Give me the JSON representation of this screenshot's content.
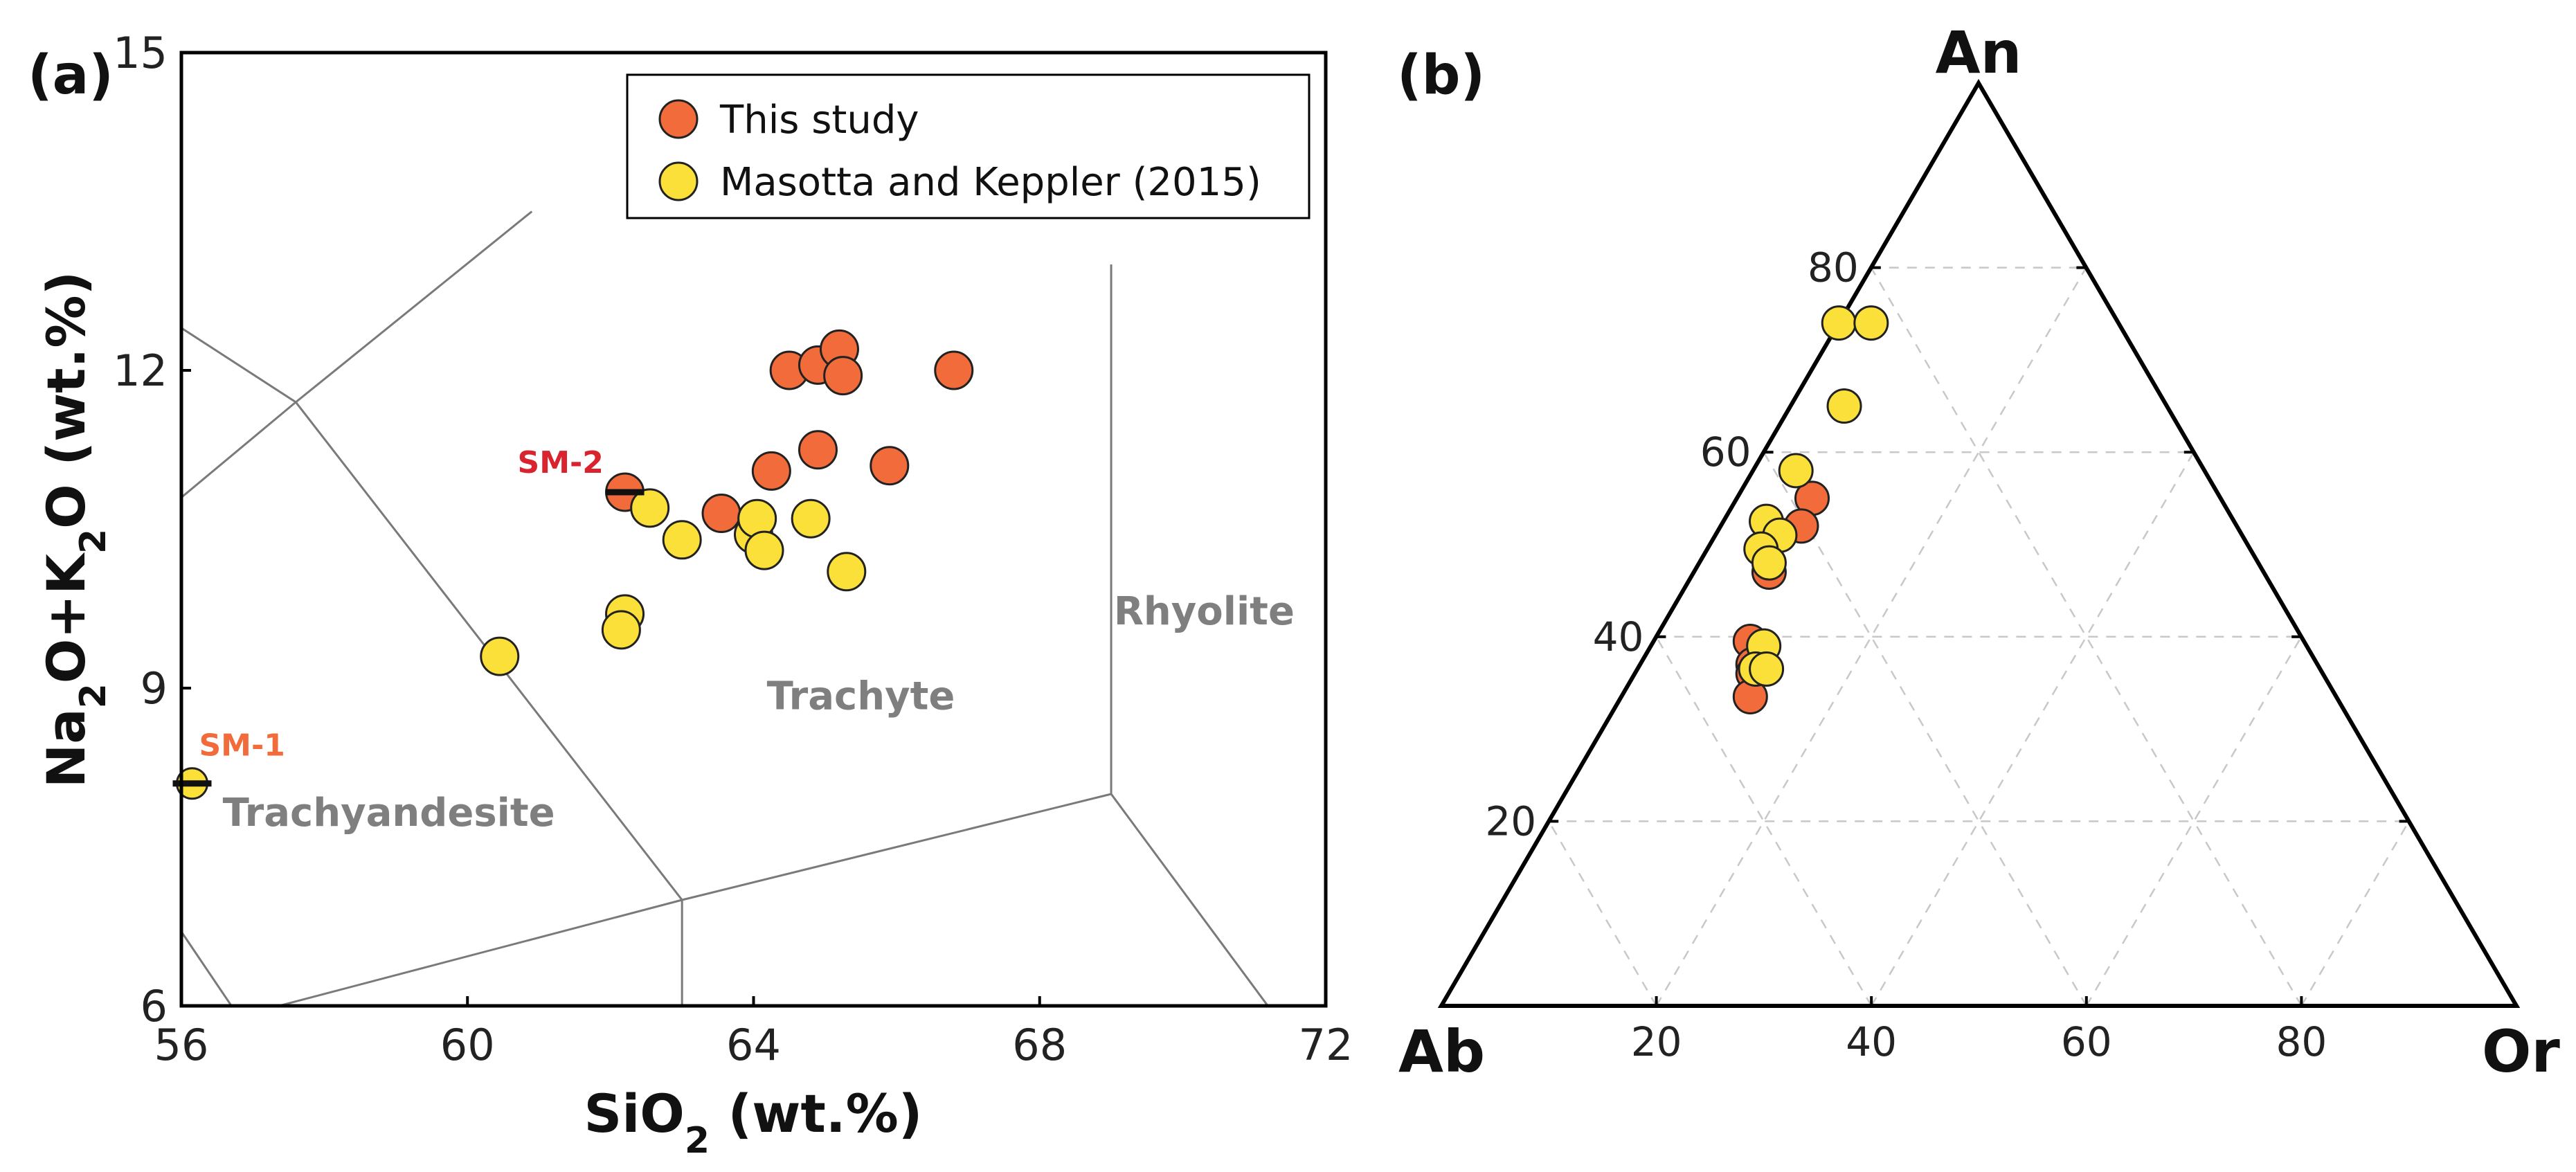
{
  "chart_data": [
    {
      "type": "scatter",
      "panel_label": "(a)",
      "xlabel": "SiO2 (wt.%)",
      "ylabel": "Na2O+K2O (wt.%)",
      "xlim": [
        56,
        72
      ],
      "ylim": [
        6,
        15
      ],
      "xticks": [
        56,
        60,
        64,
        68,
        72
      ],
      "yticks": [
        6,
        9,
        12,
        15
      ],
      "legend": {
        "placement": "top-right"
      },
      "series": [
        {
          "name": "This study",
          "color": "#f26b3a",
          "points": [
            {
              "x": 64.5,
              "y": 12.0
            },
            {
              "x": 64.9,
              "y": 12.05
            },
            {
              "x": 65.2,
              "y": 12.2
            },
            {
              "x": 65.25,
              "y": 11.95
            },
            {
              "x": 66.8,
              "y": 12.0
            },
            {
              "x": 64.9,
              "y": 11.25
            },
            {
              "x": 64.25,
              "y": 11.05
            },
            {
              "x": 65.9,
              "y": 11.1
            },
            {
              "x": 63.55,
              "y": 10.65
            },
            {
              "x": 62.2,
              "y": 10.85
            }
          ]
        },
        {
          "name": "Masotta and Keppler (2015)",
          "color": "#fce03a",
          "points": [
            {
              "x": 62.55,
              "y": 10.7
            },
            {
              "x": 63.0,
              "y": 10.4
            },
            {
              "x": 64.0,
              "y": 10.45
            },
            {
              "x": 64.05,
              "y": 10.6
            },
            {
              "x": 64.15,
              "y": 10.3
            },
            {
              "x": 64.8,
              "y": 10.6
            },
            {
              "x": 65.3,
              "y": 10.1
            },
            {
              "x": 62.2,
              "y": 9.7
            },
            {
              "x": 62.15,
              "y": 9.55
            },
            {
              "x": 60.45,
              "y": 9.3
            }
          ]
        }
      ],
      "samples": [
        {
          "label": "SM-1",
          "x": 56.15,
          "y": 8.1,
          "label_color": "#f26b3a"
        },
        {
          "label": "SM-2",
          "x": 62.2,
          "y": 10.85,
          "label_color": "#d9232e"
        }
      ],
      "regions": [
        {
          "label": "Trachyandesite",
          "x": 58.9,
          "y": 7.7
        },
        {
          "label": "Trachyte",
          "x": 65.5,
          "y": 8.8
        },
        {
          "label": "Rhyolite",
          "x": 70.3,
          "y": 9.6
        }
      ],
      "boundaries": [
        [
          [
            56,
            12.4
          ],
          [
            57.6,
            11.7
          ],
          [
            60.9,
            13.5
          ]
        ],
        [
          [
            56,
            10.8
          ],
          [
            57.6,
            11.7
          ]
        ],
        [
          [
            57.6,
            11.7
          ],
          [
            63.0,
            7.0
          ],
          [
            63.0,
            5.8
          ]
        ],
        [
          [
            56.8,
            5.9
          ],
          [
            63.0,
            7.0
          ],
          [
            69.0,
            8.0
          ],
          [
            71.3,
            5.9
          ]
        ],
        [
          [
            56,
            6.7
          ],
          [
            56.9,
            5.8
          ]
        ],
        [
          [
            69.0,
            8.0
          ],
          [
            69.0,
            13.0
          ]
        ]
      ]
    },
    {
      "type": "scatter",
      "subtype": "ternary",
      "panel_label": "(b)",
      "vertices": {
        "top": "An",
        "left": "Ab",
        "right": "Or"
      },
      "an_ticks": [
        20,
        40,
        60,
        80
      ],
      "or_ticks": [
        20,
        40,
        60,
        80
      ],
      "grid": true,
      "series": [
        {
          "name": "This study",
          "color": "#f26b3a",
          "points": [
            {
              "an": 55,
              "or": 7
            },
            {
              "an": 52,
              "or": 7.5
            },
            {
              "an": 47,
              "or": 7
            },
            {
              "an": 39.5,
              "or": 9
            },
            {
              "an": 37,
              "or": 10.5
            },
            {
              "an": 36,
              "or": 11
            },
            {
              "an": 33.5,
              "or": 12
            }
          ]
        },
        {
          "name": "Masotta and Keppler (2015)",
          "color": "#fce03a",
          "points": [
            {
              "an": 74,
              "or": 0
            },
            {
              "an": 74,
              "or": 3
            },
            {
              "an": 65,
              "or": 5
            },
            {
              "an": 58,
              "or": 4
            },
            {
              "an": 52.5,
              "or": 4
            },
            {
              "an": 51,
              "or": 6
            },
            {
              "an": 49.5,
              "or": 5
            },
            {
              "an": 48,
              "or": 6.5
            },
            {
              "an": 39,
              "or": 10.5
            },
            {
              "an": 36.5,
              "or": 11
            },
            {
              "an": 36.5,
              "or": 12
            }
          ]
        }
      ]
    }
  ]
}
